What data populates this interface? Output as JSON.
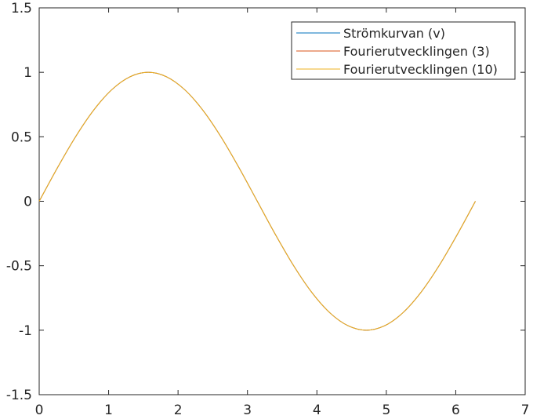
{
  "chart_data": {
    "type": "line",
    "title": "",
    "xlabel": "",
    "ylabel": "",
    "xlim": [
      0,
      7
    ],
    "ylim": [
      -1.5,
      1.5
    ],
    "x_ticks": [
      0,
      1,
      2,
      3,
      4,
      5,
      6,
      7
    ],
    "y_ticks": [
      -1.5,
      -1,
      -0.5,
      0,
      0.5,
      1,
      1.5
    ],
    "x_tick_labels": [
      "0",
      "1",
      "2",
      "3",
      "4",
      "5",
      "6",
      "7"
    ],
    "y_tick_labels": [
      "-1.5",
      "-1",
      "-0.5",
      "0",
      "0.5",
      "1",
      "1.5"
    ],
    "grid": false,
    "legend_position": "top-right",
    "x": [
      0,
      0.2618,
      0.5236,
      0.7854,
      1.0472,
      1.309,
      1.5708,
      1.8326,
      2.0944,
      2.3562,
      2.618,
      2.8798,
      3.1416,
      3.4034,
      3.6652,
      3.927,
      4.1888,
      4.4506,
      4.7124,
      4.9742,
      5.236,
      5.4978,
      5.7596,
      6.0214,
      6.2832
    ],
    "series": [
      {
        "name": "Strömkurvan (v)",
        "color": "#0072bd",
        "values": [
          0,
          0.2588,
          0.5,
          0.7071,
          0.866,
          0.9659,
          1,
          0.9659,
          0.866,
          0.7071,
          0.5,
          0.2588,
          0,
          -0.2588,
          -0.5,
          -0.7071,
          -0.866,
          -0.9659,
          -1,
          -0.9659,
          -0.866,
          -0.7071,
          -0.5,
          -0.2588,
          0
        ]
      },
      {
        "name": "Fourierutvecklingen (3)",
        "color": "#d95319",
        "values": [
          0,
          0.2588,
          0.5,
          0.7071,
          0.866,
          0.9659,
          1,
          0.9659,
          0.866,
          0.7071,
          0.5,
          0.2588,
          0,
          -0.2588,
          -0.5,
          -0.7071,
          -0.866,
          -0.9659,
          -1,
          -0.9659,
          -0.866,
          -0.7071,
          -0.5,
          -0.2588,
          0
        ]
      },
      {
        "name": "Fourierutvecklingen (10)",
        "color": "#edb120",
        "values": [
          0,
          0.2588,
          0.5,
          0.7071,
          0.866,
          0.9659,
          1,
          0.9659,
          0.866,
          0.7071,
          0.5,
          0.2588,
          0,
          -0.2588,
          -0.5,
          -0.7071,
          -0.866,
          -0.9659,
          -1,
          -0.9659,
          -0.866,
          -0.7071,
          -0.5,
          -0.2588,
          0
        ]
      }
    ]
  }
}
